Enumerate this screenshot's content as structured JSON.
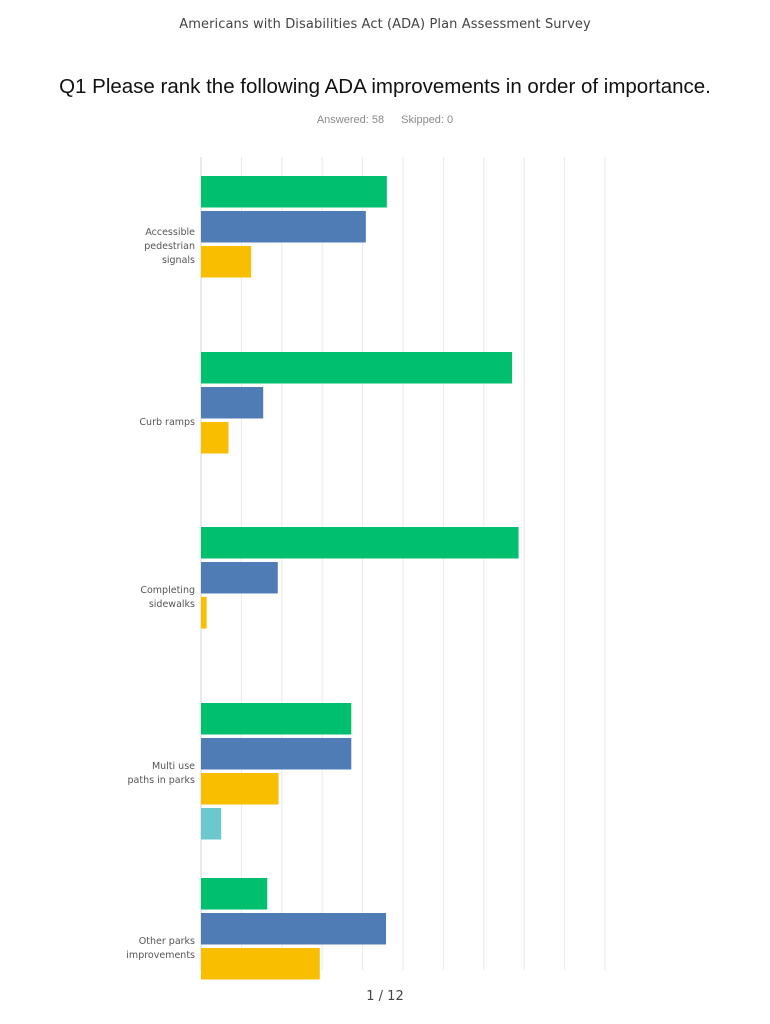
{
  "header": {
    "survey_title": "Americans with Disabilities Act (ADA) Plan Assessment Survey"
  },
  "question": {
    "title": "Q1 Please rank the following ADA improvements in order of importance.",
    "answered_label": "Answered: 58",
    "skipped_label": "Skipped: 0"
  },
  "chart_data": {
    "type": "bar",
    "orientation": "horizontal",
    "grid": true,
    "categories": [
      [
        "Accessible",
        "pedestrian",
        "signals"
      ],
      [
        "Curb ramps"
      ],
      [
        "Completing",
        "sidewalks"
      ],
      [
        "Multi use",
        "paths in parks"
      ],
      [
        "Other parks",
        "improvements"
      ]
    ],
    "series": [
      {
        "color": "#00bf6f",
        "values": [
          23,
          38.5,
          39.3,
          18.6,
          8.2
        ]
      },
      {
        "color": "#507cb6",
        "values": [
          20.4,
          7.7,
          9.5,
          18.6,
          22.9
        ]
      },
      {
        "color": "#f9be00",
        "values": [
          6.2,
          3.4,
          0.7,
          9.6,
          14.7
        ]
      },
      {
        "color": "#6bc8cd",
        "values": [
          0,
          0,
          0,
          2.5,
          0
        ]
      }
    ]
  },
  "footer": {
    "page_label": "1 / 12"
  }
}
